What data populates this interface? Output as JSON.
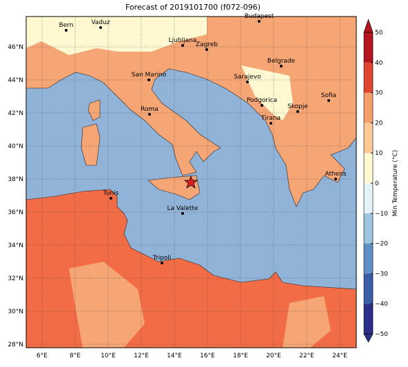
{
  "title": "Forecast of 2019101700 (f072-096)",
  "x_axis": {
    "ticks": [
      "6°E",
      "8°E",
      "10°E",
      "12°E",
      "14°E",
      "16°E",
      "18°E",
      "20°E",
      "22°E",
      "24°E"
    ]
  },
  "y_axis": {
    "ticks": [
      "28°N",
      "30°N",
      "32°N",
      "34°N",
      "36°N",
      "38°N",
      "40°N",
      "42°N",
      "44°N",
      "46°N"
    ]
  },
  "cities": [
    "Bern",
    "Vaduz",
    "Budapest",
    "Ljubljana",
    "Zagreb",
    "Belgrade",
    "Sarajevo",
    "San Marino",
    "Sofia",
    "Podgorica",
    "Skopje",
    "Roma",
    "Tirana",
    "Athens",
    "Tunis",
    "La Valette",
    "Tripoli"
  ],
  "colorbar": {
    "label": "Min Temperature (°C)",
    "lim": [
      -50,
      50
    ],
    "ticks": [
      {
        "value": -50,
        "label": "−50"
      },
      {
        "value": -40,
        "label": "−40"
      },
      {
        "value": -30,
        "label": "−30"
      },
      {
        "value": -20,
        "label": "−20"
      },
      {
        "value": -10,
        "label": "−10"
      },
      0,
      10,
      20,
      30,
      40,
      50
    ],
    "colors": [
      "#2b2f8a",
      "#3a5ea8",
      "#5f8fc4",
      "#9cc6e0",
      "#e4f3f8",
      "#fff8d0",
      "#fdc894",
      "#f4a06a",
      "#e0452f",
      "#b4141f"
    ]
  }
}
